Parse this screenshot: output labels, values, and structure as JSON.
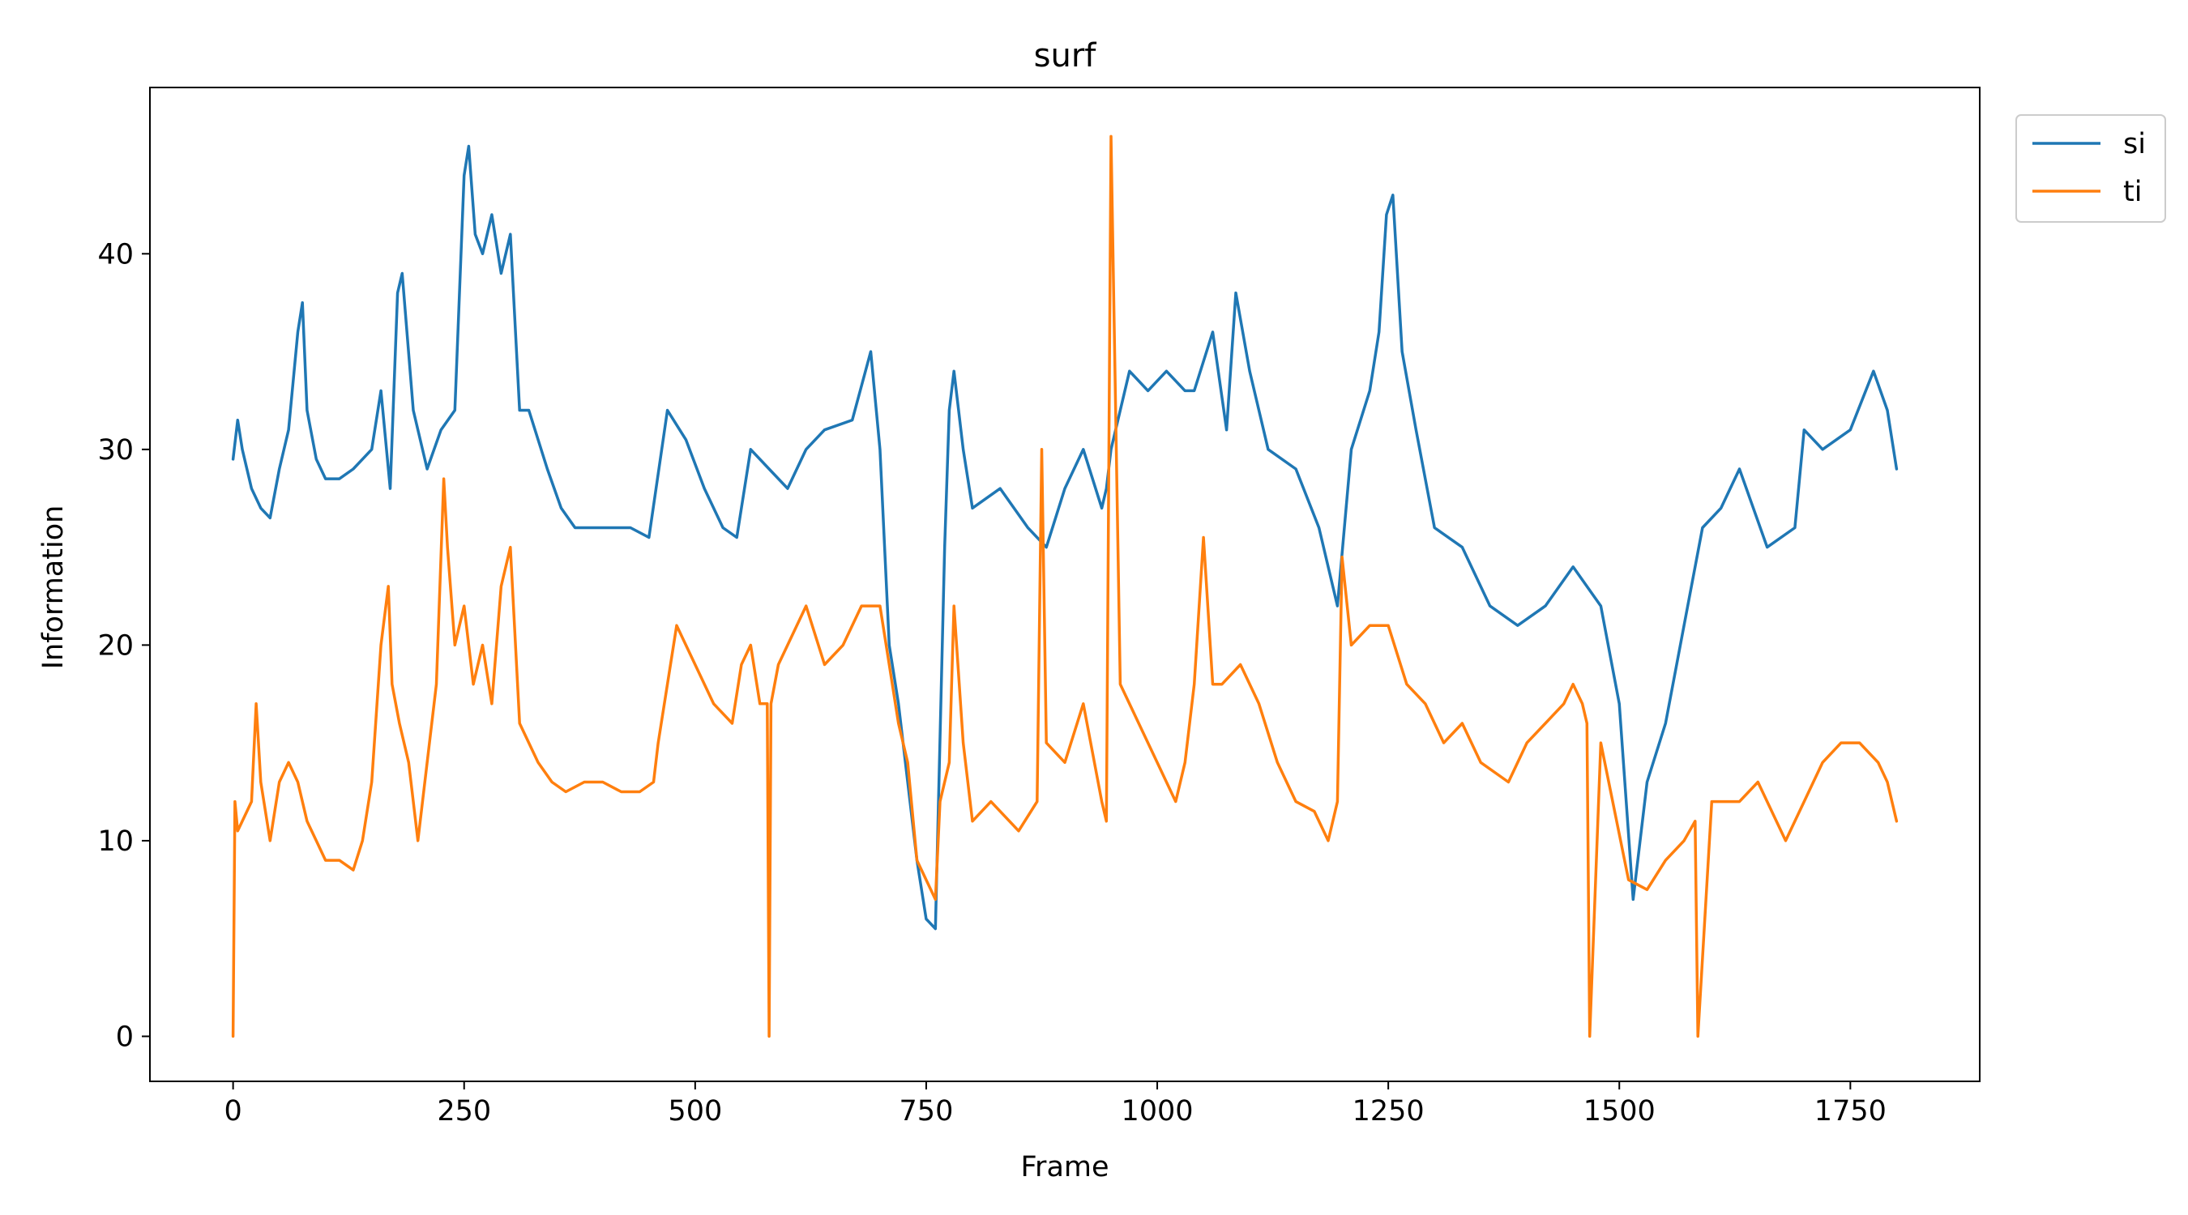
{
  "chart_data": {
    "type": "line",
    "title": "surf",
    "xlabel": "Frame",
    "ylabel": "Information",
    "xlim": [
      -90,
      1890
    ],
    "ylim": [
      -2.3,
      48.5
    ],
    "xticks": [
      0,
      250,
      500,
      750,
      1000,
      1250,
      1500,
      1750
    ],
    "yticks": [
      0,
      10,
      20,
      30,
      40
    ],
    "grid": false,
    "legend_position": "outside upper right",
    "series": [
      {
        "name": "si",
        "color": "#1f77b4",
        "x": [
          0,
          5,
          10,
          20,
          30,
          40,
          50,
          60,
          70,
          75,
          80,
          90,
          100,
          115,
          130,
          140,
          150,
          160,
          170,
          178,
          183,
          195,
          210,
          225,
          240,
          250,
          255,
          262,
          270,
          280,
          290,
          300,
          310,
          320,
          340,
          355,
          370,
          390,
          410,
          430,
          450,
          470,
          490,
          510,
          530,
          545,
          560,
          580,
          600,
          620,
          640,
          670,
          690,
          700,
          710,
          720,
          730,
          740,
          750,
          760,
          770,
          775,
          780,
          790,
          800,
          830,
          860,
          880,
          900,
          920,
          940,
          945,
          950,
          970,
          990,
          1010,
          1030,
          1040,
          1060,
          1075,
          1085,
          1100,
          1120,
          1150,
          1175,
          1195,
          1210,
          1230,
          1240,
          1248,
          1255,
          1265,
          1280,
          1300,
          1330,
          1360,
          1390,
          1420,
          1450,
          1480,
          1500,
          1515,
          1530,
          1550,
          1570,
          1590,
          1610,
          1630,
          1660,
          1690,
          1700,
          1720,
          1750,
          1775,
          1790,
          1800
        ],
        "y": [
          29.5,
          31.5,
          30,
          28,
          27,
          26.5,
          29,
          31,
          36,
          37.5,
          32,
          29.5,
          28.5,
          28.5,
          29,
          29.5,
          30,
          33,
          28,
          38,
          39,
          32,
          29,
          31,
          32,
          44,
          45.5,
          41,
          40,
          42,
          39,
          41,
          32,
          32,
          29,
          27,
          26,
          26,
          26,
          26,
          25.5,
          32,
          30.5,
          28,
          26,
          25.5,
          30,
          29,
          28,
          30,
          31,
          31.5,
          35,
          30,
          20,
          17,
          13,
          9,
          6,
          5.5,
          25,
          32,
          34,
          30,
          27,
          28,
          26,
          25,
          28,
          30,
          27,
          28,
          30,
          34,
          33,
          34,
          33,
          33,
          36,
          31,
          38,
          34,
          30,
          29,
          26,
          22,
          30,
          33,
          36,
          42,
          43,
          35,
          31,
          26,
          25,
          22,
          21,
          22,
          24,
          22,
          17,
          7,
          13,
          16,
          21,
          26,
          27,
          29,
          25,
          26,
          31,
          30,
          31,
          34,
          32,
          29
        ]
      },
      {
        "name": "ti",
        "color": "#ff7f0e",
        "x": [
          0,
          2,
          5,
          10,
          20,
          25,
          30,
          40,
          50,
          60,
          70,
          80,
          90,
          100,
          115,
          130,
          140,
          150,
          160,
          168,
          172,
          180,
          190,
          200,
          210,
          220,
          228,
          232,
          240,
          250,
          260,
          270,
          280,
          290,
          300,
          310,
          320,
          330,
          345,
          360,
          380,
          400,
          420,
          440,
          455,
          460,
          470,
          480,
          500,
          520,
          540,
          550,
          560,
          570,
          578,
          580,
          582,
          590,
          600,
          620,
          640,
          660,
          680,
          700,
          710,
          720,
          730,
          740,
          750,
          760,
          765,
          775,
          780,
          790,
          800,
          820,
          850,
          870,
          875,
          880,
          900,
          920,
          940,
          945,
          950,
          960,
          980,
          1000,
          1020,
          1030,
          1040,
          1050,
          1060,
          1070,
          1090,
          1110,
          1130,
          1150,
          1170,
          1185,
          1195,
          1200,
          1210,
          1230,
          1250,
          1270,
          1290,
          1310,
          1330,
          1350,
          1380,
          1400,
          1420,
          1440,
          1450,
          1460,
          1465,
          1468,
          1480,
          1510,
          1530,
          1550,
          1570,
          1582,
          1585,
          1600,
          1630,
          1650,
          1680,
          1700,
          1720,
          1740,
          1760,
          1780,
          1790,
          1800
        ],
        "y": [
          0,
          12,
          10.5,
          11,
          12,
          17,
          13,
          10,
          13,
          14,
          13,
          11,
          10,
          9,
          9,
          8.5,
          10,
          13,
          20,
          23,
          18,
          16,
          14,
          10,
          14,
          18,
          28.5,
          25,
          20,
          22,
          18,
          20,
          17,
          23,
          25,
          16,
          15,
          14,
          13,
          12.5,
          13,
          13,
          12.5,
          12.5,
          13,
          15,
          18,
          21,
          19,
          17,
          16,
          19,
          20,
          17,
          17,
          0,
          17,
          19,
          20,
          22,
          19,
          20,
          22,
          22,
          19,
          16,
          14,
          9,
          8,
          7,
          12,
          14,
          22,
          15,
          11,
          12,
          10.5,
          12,
          30,
          15,
          14,
          17,
          12,
          11,
          46,
          18,
          16,
          14,
          12,
          14,
          18,
          25.5,
          18,
          18,
          19,
          17,
          14,
          12,
          11.5,
          10,
          12,
          24.5,
          20,
          21,
          21,
          18,
          17,
          15,
          16,
          14,
          13,
          15,
          16,
          17,
          18,
          17,
          16,
          0,
          15,
          8,
          7.5,
          9,
          10,
          11,
          0,
          12,
          12,
          13,
          10,
          12,
          14,
          15,
          15,
          14,
          13,
          11
        ]
      }
    ]
  }
}
